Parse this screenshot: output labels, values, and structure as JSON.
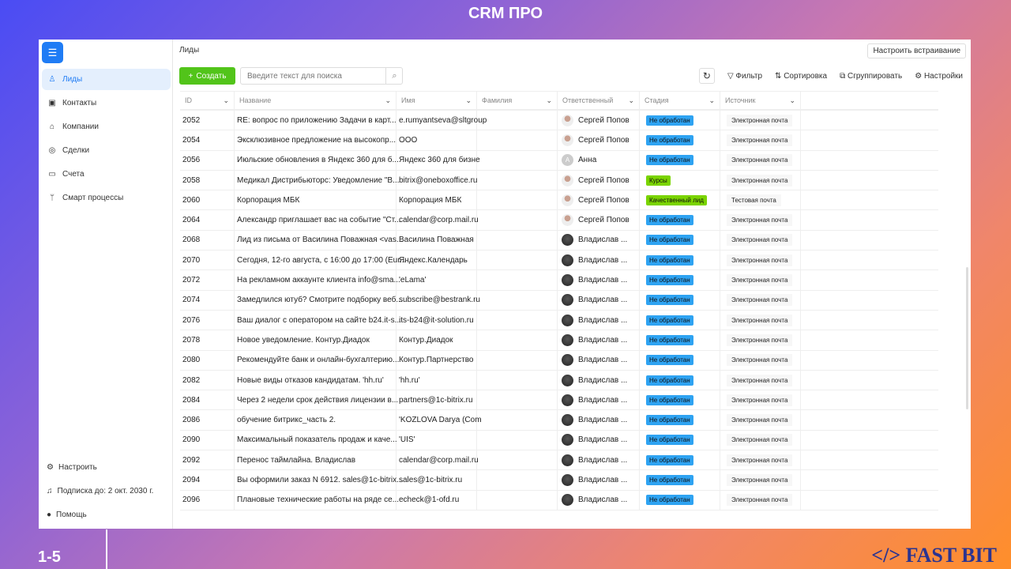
{
  "slide": {
    "title": "CRM ПРО",
    "page": "1-5",
    "logo": "</> FAST BIT"
  },
  "sidebar": {
    "items": [
      {
        "label": "Лиды",
        "icon": "user-icon"
      },
      {
        "label": "Контакты",
        "icon": "contact-card-icon"
      },
      {
        "label": "Компании",
        "icon": "bank-icon"
      },
      {
        "label": "Сделки",
        "icon": "deal-icon"
      },
      {
        "label": "Счета",
        "icon": "card-icon"
      },
      {
        "label": "Смарт процессы",
        "icon": "branch-icon"
      }
    ],
    "bottom": [
      {
        "label": "Настроить",
        "icon": "gear-icon"
      },
      {
        "label": "Подписка до: 2 окт. 2030 г.",
        "icon": "bell-icon"
      },
      {
        "label": "Помощь",
        "icon": "help-icon"
      }
    ]
  },
  "header": {
    "breadcrumb": "Лиды",
    "embed": "Настроить встраивание",
    "create": "Создать",
    "search_placeholder": "Введите текст для поиска",
    "filter": "Фильтр",
    "sort": "Сортировка",
    "group": "Сгруппировать",
    "settings": "Настройки"
  },
  "columns": [
    "ID",
    "Название",
    "Имя",
    "Фамилия",
    "Ответственный",
    "Стадия",
    "Источник"
  ],
  "colors": {
    "accent": "#1f7cf5",
    "create": "#52c41a",
    "stage_new": "#2ea3f2",
    "stage_green": "#7ad400"
  },
  "rows": [
    [
      "2052",
      "RE: вопрос по приложению Задачи в карт...",
      "e.rumyantseva@sltgroup",
      "",
      "Сергей Попов",
      "Не обработан",
      "Электронная почта"
    ],
    [
      "2054",
      "Эксклюзивное предложение на высокопр...",
      "ООО",
      "",
      "Сергей Попов",
      "Не обработан",
      "Электронная почта"
    ],
    [
      "2056",
      "Июльские обновления в Яндекс 360 для б...",
      "Яндекс 360 для бизне",
      "",
      "Анна",
      "Не обработан",
      "Электронная почта"
    ],
    [
      "2058",
      "Медикал Дистрибьюторс: Уведомление \"В...",
      "bitrix@oneboxoffice.ru",
      "",
      "Сергей Попов",
      "Курсы",
      "Электронная почта"
    ],
    [
      "2060",
      "Корпорация МБК",
      "Корпорация МБК",
      "",
      "Сергей Попов",
      "Качественный лид",
      "Тестовая почта"
    ],
    [
      "2064",
      "Александр приглашает вас на событие \"Ст...",
      "calendar@corp.mail.ru",
      "",
      "Сергей Попов",
      "Не обработан",
      "Электронная почта"
    ],
    [
      "2068",
      "Лид из письма от Василина Поважная <vas...",
      "Василина Поважная",
      "",
      "Владислав ...",
      "Не обработан",
      "Электронная почта"
    ],
    [
      "2070",
      "Сегодня, 12-го августа, с 16:00 до 17:00 (Eur...",
      "Яндекс.Календарь",
      "",
      "Владислав ...",
      "Не обработан",
      "Электронная почта"
    ],
    [
      "2072",
      "На рекламном аккаунте клиента info@sma...",
      "'eLama'",
      "",
      "Владислав ...",
      "Не обработан",
      "Электронная почта"
    ],
    [
      "2074",
      "Замедлился ютуб? Смотрите подборку веб...",
      "subscribe@bestrank.ru",
      "",
      "Владислав ...",
      "Не обработан",
      "Электронная почта"
    ],
    [
      "2076",
      "Ваш диалог с оператором на сайте b24.it-s...",
      "its-b24@it-solution.ru",
      "",
      "Владислав ...",
      "Не обработан",
      "Электронная почта"
    ],
    [
      "2078",
      "Новое уведомление. Контур.Диадок",
      "Контур.Диадок",
      "",
      "Владислав ...",
      "Не обработан",
      "Электронная почта"
    ],
    [
      "2080",
      "Рекомендуйте банк и онлайн-бухгалтерию...",
      "Контур.Партнерство",
      "",
      "Владислав ...",
      "Не обработан",
      "Электронная почта"
    ],
    [
      "2082",
      "Новые виды отказов кандидатам. 'hh.ru'",
      "'hh.ru'",
      "",
      "Владислав ...",
      "Не обработан",
      "Электронная почта"
    ],
    [
      "2084",
      "Через 2 недели срок действия лицензии в...",
      "partners@1c-bitrix.ru",
      "",
      "Владислав ...",
      "Не обработан",
      "Электронная почта"
    ],
    [
      "2086",
      "обучение битрикс_часть 2.",
      "'KOZLOVA Darya (Com",
      "",
      "Владислав ...",
      "Не обработан",
      "Электронная почта"
    ],
    [
      "2090",
      "Максимальный показатель продаж и каче...",
      "'UIS'",
      "",
      "Владислав ...",
      "Не обработан",
      "Электронная почта"
    ],
    [
      "2092",
      "Перенос таймлайна. Владислав",
      "calendar@corp.mail.ru",
      "",
      "Владислав ...",
      "Не обработан",
      "Электронная почта"
    ],
    [
      "2094",
      "Вы оформили заказ N 6912. sales@1c-bitrix...",
      "sales@1c-bitrix.ru",
      "",
      "Владислав ...",
      "Не обработан",
      "Электронная почта"
    ],
    [
      "2096",
      "Плановые технические работы на ряде се...",
      "echeck@1-ofd.ru",
      "",
      "Владислав ...",
      "Не обработан",
      "Электронная почта"
    ]
  ]
}
